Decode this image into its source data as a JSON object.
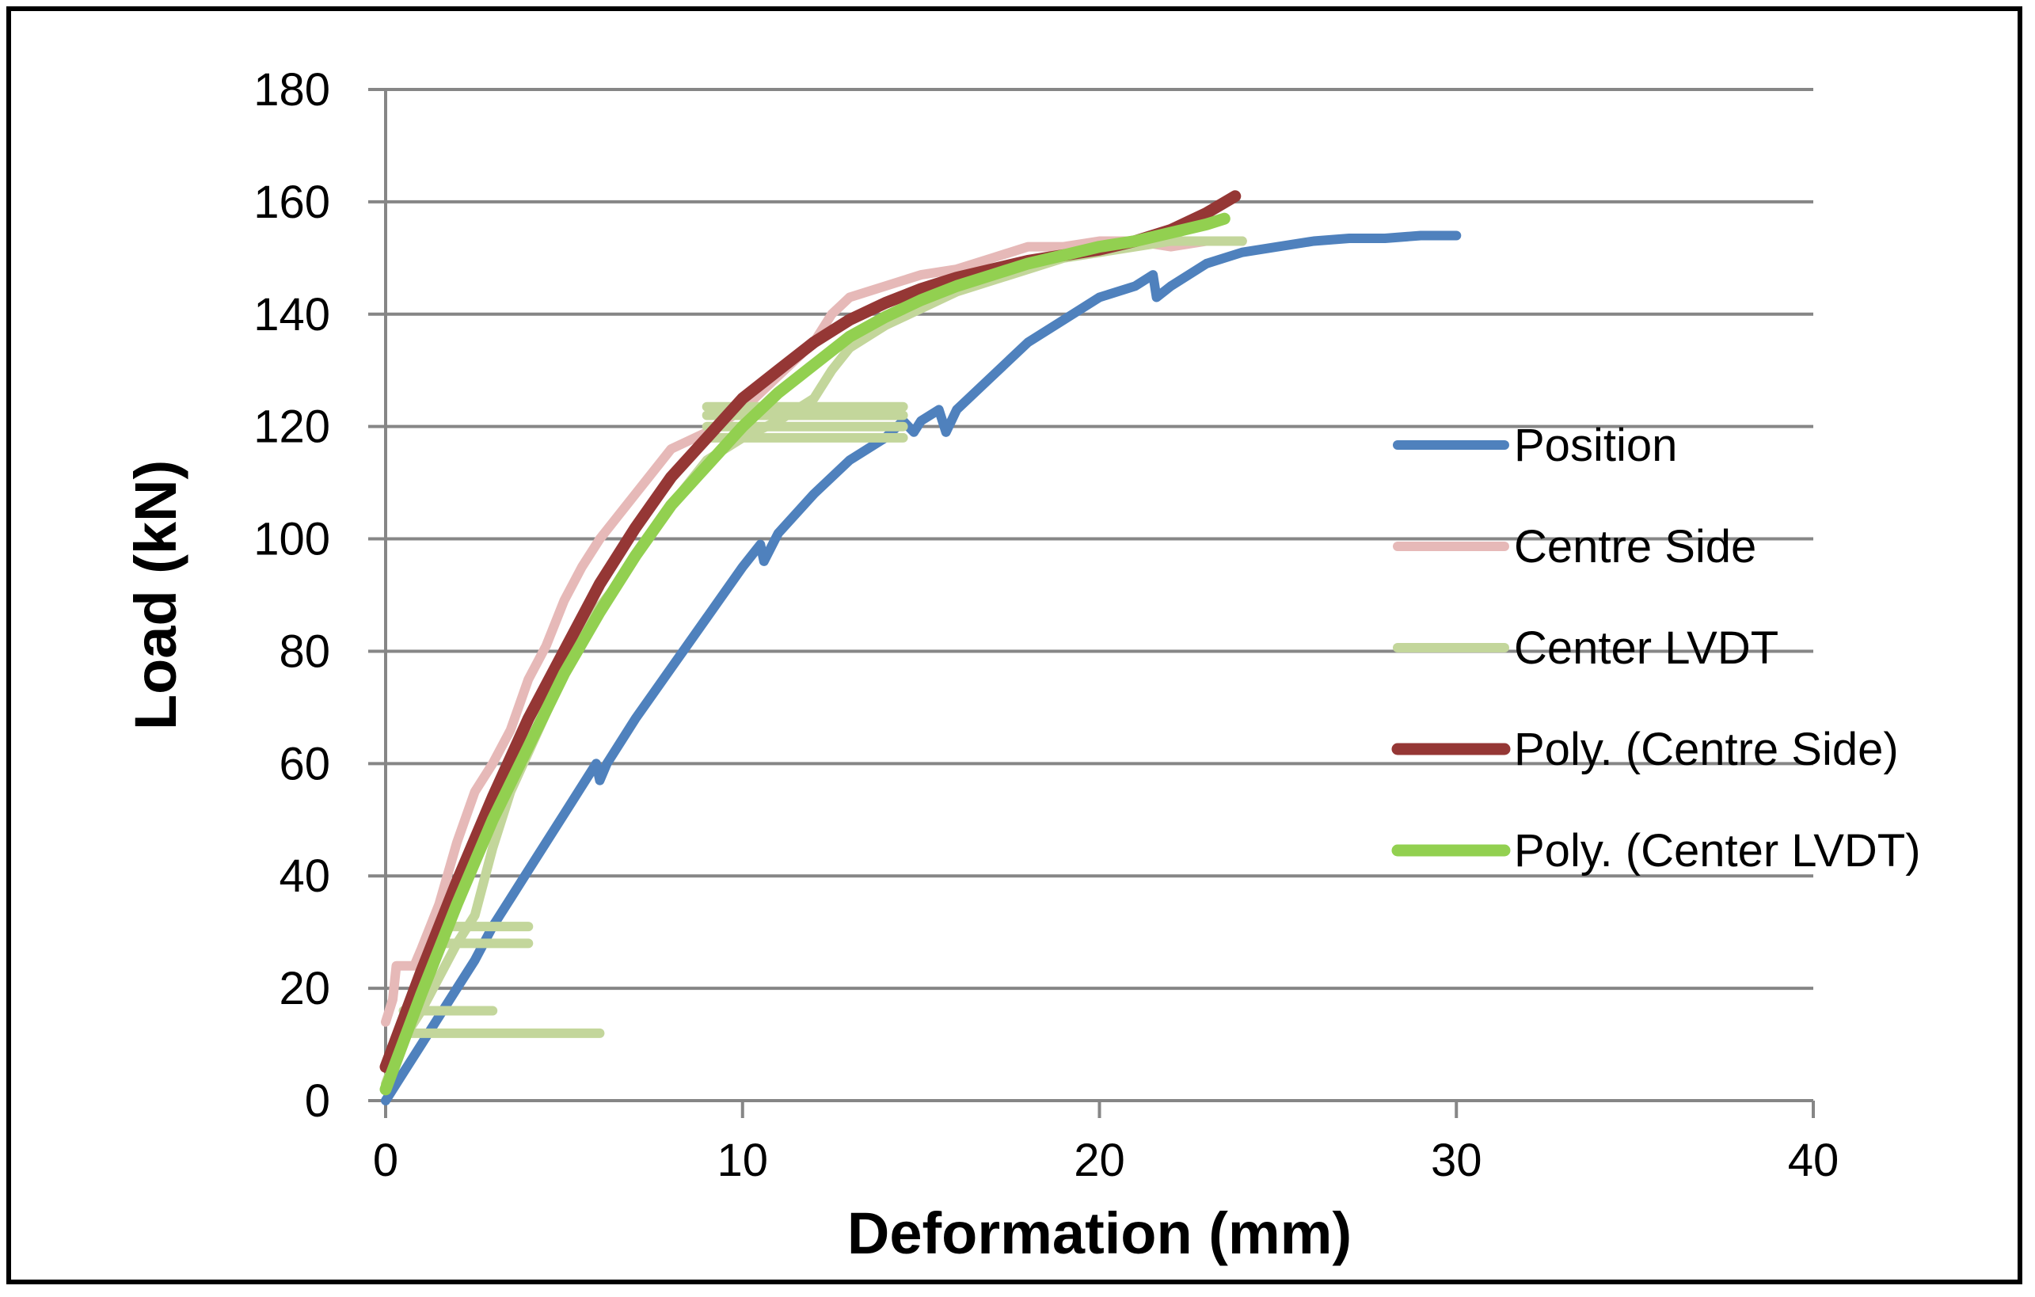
{
  "chart_data": {
    "type": "line",
    "title": "",
    "xlabel": "Deformation (mm)",
    "ylabel": "Load (kN)",
    "xlim": [
      0,
      40
    ],
    "ylim": [
      0,
      180
    ],
    "x_ticks": [
      0,
      10,
      20,
      30,
      40
    ],
    "y_ticks": [
      0,
      20,
      40,
      60,
      80,
      100,
      120,
      140,
      160,
      180
    ],
    "x_tick_labels": [
      "0",
      "10",
      "20",
      "30",
      "40"
    ],
    "y_tick_labels": [
      "0",
      "20",
      "40",
      "60",
      "80",
      "100",
      "120",
      "140",
      "160",
      "180"
    ],
    "grid": "horizontal",
    "legend_position": "right",
    "series": [
      {
        "name": "Position",
        "color": "#4F81BD",
        "style": "measured",
        "points": [
          [
            0,
            0
          ],
          [
            0.5,
            5
          ],
          [
            1,
            10
          ],
          [
            1.5,
            15
          ],
          [
            2,
            20
          ],
          [
            2.5,
            25
          ],
          [
            3,
            31
          ],
          [
            3.5,
            36
          ],
          [
            4,
            41
          ],
          [
            4.5,
            46
          ],
          [
            5,
            51
          ],
          [
            5.5,
            56
          ],
          [
            5.9,
            60
          ],
          [
            6,
            57
          ],
          [
            6.2,
            60
          ],
          [
            7,
            68
          ],
          [
            8,
            77
          ],
          [
            9,
            86
          ],
          [
            10,
            95
          ],
          [
            10.5,
            99
          ],
          [
            10.6,
            96
          ],
          [
            11,
            101
          ],
          [
            12,
            108
          ],
          [
            13,
            114
          ],
          [
            14,
            118
          ],
          [
            14.5,
            121
          ],
          [
            14.8,
            119
          ],
          [
            15,
            121
          ],
          [
            15.5,
            123
          ],
          [
            15.7,
            119
          ],
          [
            16,
            123
          ],
          [
            17,
            129
          ],
          [
            18,
            135
          ],
          [
            19,
            139
          ],
          [
            20,
            143
          ],
          [
            21,
            145
          ],
          [
            21.5,
            147
          ],
          [
            21.6,
            143
          ],
          [
            22,
            145
          ],
          [
            23,
            149
          ],
          [
            24,
            151
          ],
          [
            25,
            152
          ],
          [
            26,
            153
          ],
          [
            27,
            153.5
          ],
          [
            28,
            153.5
          ],
          [
            29,
            154
          ],
          [
            30,
            154
          ]
        ]
      },
      {
        "name": "Centre Side",
        "color": "#E6B9B8",
        "style": "measured",
        "points": [
          [
            0,
            14
          ],
          [
            0.2,
            18
          ],
          [
            0.3,
            24
          ],
          [
            0.8,
            24
          ],
          [
            1,
            27
          ],
          [
            1.5,
            35
          ],
          [
            2,
            46
          ],
          [
            2.5,
            55
          ],
          [
            3,
            60
          ],
          [
            3.5,
            66
          ],
          [
            4,
            75
          ],
          [
            4.5,
            81
          ],
          [
            5,
            89
          ],
          [
            5.5,
            95
          ],
          [
            6,
            100
          ],
          [
            6.5,
            104
          ],
          [
            7,
            108
          ],
          [
            7.5,
            112
          ],
          [
            8,
            116
          ],
          [
            9,
            119
          ],
          [
            10,
            123
          ],
          [
            11,
            129
          ],
          [
            12,
            135
          ],
          [
            12.5,
            140
          ],
          [
            13,
            143
          ],
          [
            14,
            145
          ],
          [
            15,
            147
          ],
          [
            16,
            148
          ],
          [
            17,
            150
          ],
          [
            18,
            152
          ],
          [
            19,
            152
          ],
          [
            20,
            153
          ],
          [
            21,
            153
          ],
          [
            22,
            152
          ],
          [
            23,
            153
          ],
          [
            24,
            153
          ]
        ]
      },
      {
        "name": "Center LVDT",
        "color": "#C3D69B",
        "style": "measured",
        "points": [
          [
            0,
            3
          ],
          [
            0.3,
            8
          ],
          [
            0.6,
            12
          ],
          [
            1,
            16
          ],
          [
            1.5,
            22
          ],
          [
            2,
            28
          ],
          [
            2.5,
            33
          ],
          [
            3,
            45
          ],
          [
            3.5,
            55
          ],
          [
            4,
            62
          ],
          [
            5,
            76
          ],
          [
            6,
            88
          ],
          [
            6.5,
            92
          ],
          [
            7,
            97
          ],
          [
            8,
            106
          ],
          [
            9,
            114
          ],
          [
            10,
            118
          ],
          [
            11,
            121
          ],
          [
            12,
            125
          ],
          [
            12.5,
            130
          ],
          [
            13,
            134
          ],
          [
            14,
            138
          ],
          [
            15,
            141
          ],
          [
            16,
            144
          ],
          [
            17,
            146
          ],
          [
            18,
            148
          ],
          [
            19,
            150
          ],
          [
            20,
            151
          ],
          [
            21,
            152
          ],
          [
            22,
            153
          ],
          [
            23,
            153
          ],
          [
            24,
            153
          ]
        ],
        "plateaus": [
          [
            [
              0.5,
              12
            ],
            [
              6,
              12
            ]
          ],
          [
            [
              0.5,
              16
            ],
            [
              3,
              16
            ]
          ],
          [
            [
              1.5,
              28
            ],
            [
              4,
              28
            ]
          ],
          [
            [
              1.5,
              31
            ],
            [
              4,
              31
            ]
          ],
          [
            [
              9,
              118
            ],
            [
              14.5,
              118
            ]
          ],
          [
            [
              9,
              120
            ],
            [
              14.5,
              120
            ]
          ],
          [
            [
              9,
              122
            ],
            [
              14.5,
              122
            ]
          ],
          [
            [
              9,
              123.5
            ],
            [
              14.5,
              123.5
            ]
          ]
        ]
      },
      {
        "name": "Poly. (Centre Side)",
        "color": "#953735",
        "style": "trend",
        "points": [
          [
            0,
            6
          ],
          [
            1,
            23
          ],
          [
            2,
            39
          ],
          [
            3,
            54
          ],
          [
            4,
            68
          ],
          [
            5,
            80
          ],
          [
            6,
            92
          ],
          [
            7,
            102
          ],
          [
            8,
            111
          ],
          [
            9,
            118
          ],
          [
            10,
            125
          ],
          [
            11,
            130
          ],
          [
            12,
            135
          ],
          [
            13,
            139
          ],
          [
            14,
            142
          ],
          [
            15,
            144.5
          ],
          [
            16,
            146.5
          ],
          [
            17,
            148
          ],
          [
            18,
            149.5
          ],
          [
            19,
            150.5
          ],
          [
            20,
            151.5
          ],
          [
            21,
            153
          ],
          [
            22,
            155
          ],
          [
            23,
            158
          ],
          [
            23.8,
            161
          ]
        ]
      },
      {
        "name": "Poly. (Center LVDT)",
        "color": "#92D050",
        "style": "trend",
        "points": [
          [
            0,
            2
          ],
          [
            1,
            19
          ],
          [
            2,
            35
          ],
          [
            3,
            50
          ],
          [
            4,
            63
          ],
          [
            5,
            76
          ],
          [
            6,
            87
          ],
          [
            7,
            97
          ],
          [
            8,
            106
          ],
          [
            9,
            113
          ],
          [
            10,
            120
          ],
          [
            11,
            126
          ],
          [
            12,
            131
          ],
          [
            13,
            136
          ],
          [
            14,
            139.5
          ],
          [
            15,
            142.5
          ],
          [
            16,
            145
          ],
          [
            17,
            147
          ],
          [
            18,
            149
          ],
          [
            19,
            150.5
          ],
          [
            20,
            152
          ],
          [
            21,
            153
          ],
          [
            22,
            154.5
          ],
          [
            23,
            156
          ],
          [
            23.5,
            157
          ]
        ]
      }
    ]
  }
}
